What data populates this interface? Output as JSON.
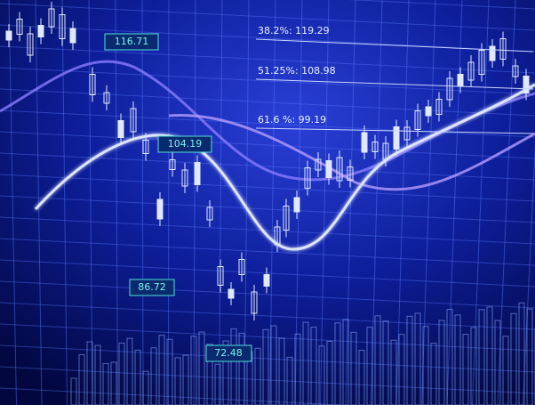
{
  "fib_levels": [
    "38.2%: 119.29",
    "51.25%: 108.98",
    "61.6 %: 99.19"
  ],
  "callouts": [
    "116.71",
    "104.19",
    "86.72",
    "72.48"
  ]
}
